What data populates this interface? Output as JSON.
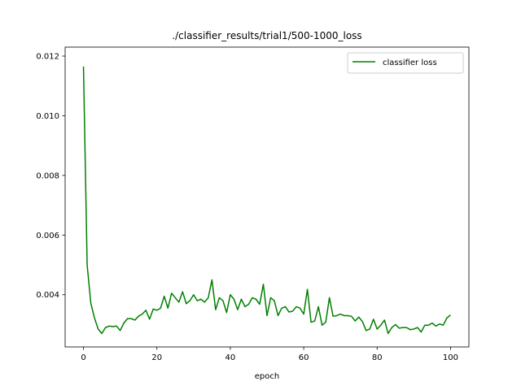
{
  "chart_data": {
    "type": "line",
    "title": "./classifier_results/trial1/500-1000_loss",
    "xlabel": "epoch",
    "ylabel": "",
    "xlim": [
      -5,
      105
    ],
    "ylim": [
      0.00225,
      0.0123
    ],
    "xticks": [
      0,
      20,
      40,
      60,
      80,
      100
    ],
    "yticks": [
      0.004,
      0.006,
      0.008,
      0.01,
      0.012
    ],
    "ytick_labels": [
      "0.004",
      "0.006",
      "0.008",
      "0.010",
      "0.012"
    ],
    "grid": false,
    "legend_position": "top-right",
    "series": [
      {
        "name": "classifier loss",
        "color": "#008000",
        "x": [
          0,
          1,
          2,
          3,
          4,
          5,
          6,
          7,
          8,
          9,
          10,
          11,
          12,
          13,
          14,
          15,
          16,
          17,
          18,
          19,
          20,
          21,
          22,
          23,
          24,
          25,
          26,
          27,
          28,
          29,
          30,
          31,
          32,
          33,
          34,
          35,
          36,
          37,
          38,
          39,
          40,
          41,
          42,
          43,
          44,
          45,
          46,
          47,
          48,
          49,
          50,
          51,
          52,
          53,
          54,
          55,
          56,
          57,
          58,
          59,
          60,
          61,
          62,
          63,
          64,
          65,
          66,
          67,
          68,
          69,
          70,
          71,
          72,
          73,
          74,
          75,
          76,
          77,
          78,
          79,
          80,
          81,
          82,
          83,
          84,
          85,
          86,
          87,
          88,
          89,
          90,
          91,
          92,
          93,
          94,
          95,
          96,
          97,
          98,
          99,
          100
        ],
        "values": [
          0.01165,
          0.005,
          0.00372,
          0.00322,
          0.00285,
          0.0027,
          0.0029,
          0.00295,
          0.00293,
          0.00295,
          0.0028,
          0.00305,
          0.0032,
          0.0032,
          0.00315,
          0.00328,
          0.00335,
          0.00348,
          0.00318,
          0.00352,
          0.00348,
          0.00355,
          0.00395,
          0.00355,
          0.00405,
          0.0039,
          0.00375,
          0.0041,
          0.0037,
          0.0038,
          0.004,
          0.0038,
          0.00385,
          0.00375,
          0.0039,
          0.0045,
          0.0035,
          0.0039,
          0.0038,
          0.0034,
          0.004,
          0.00385,
          0.0035,
          0.00385,
          0.0036,
          0.00368,
          0.0039,
          0.00385,
          0.00368,
          0.00435,
          0.0033,
          0.0039,
          0.0038,
          0.0033,
          0.00355,
          0.0036,
          0.00342,
          0.00345,
          0.0036,
          0.00355,
          0.00335,
          0.00418,
          0.00308,
          0.00312,
          0.0036,
          0.00298,
          0.00308,
          0.0039,
          0.00328,
          0.0033,
          0.00335,
          0.0033,
          0.0033,
          0.00328,
          0.00312,
          0.00325,
          0.0031,
          0.0028,
          0.00285,
          0.00318,
          0.00285,
          0.00298,
          0.00315,
          0.0027,
          0.0029,
          0.003,
          0.00288,
          0.0029,
          0.0029,
          0.00283,
          0.00285,
          0.0029,
          0.00275,
          0.00298,
          0.00298,
          0.00305,
          0.00295,
          0.00302,
          0.00298,
          0.00322,
          0.00332
        ]
      }
    ]
  }
}
